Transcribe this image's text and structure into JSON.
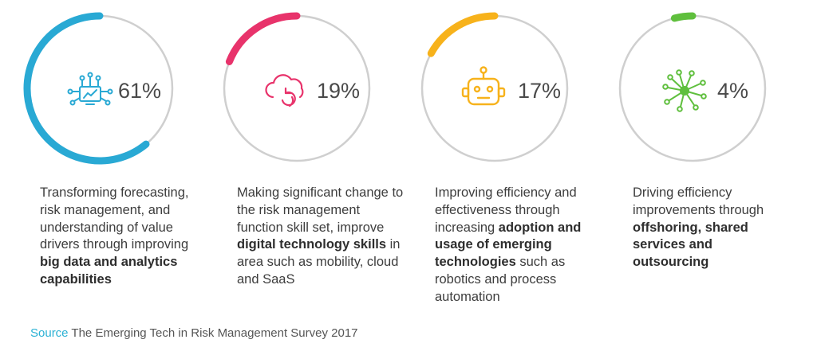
{
  "chart_data": {
    "type": "donut",
    "items": [
      {
        "value": 61,
        "value_label": "61%",
        "color": "#29a9d4",
        "icon": "analytics-network-icon",
        "text_parts": [
          "Transforming forecasting, risk management, and understanding of value drivers through improving ",
          "big data and analytics capabilities",
          ""
        ]
      },
      {
        "value": 19,
        "value_label": "19%",
        "color": "#e8336b",
        "icon": "cloud-sync-icon",
        "text_parts": [
          "Making significant change to the risk management function skill set, improve ",
          "digital technology skills",
          " in area such as mobility, cloud and SaaS"
        ]
      },
      {
        "value": 17,
        "value_label": "17%",
        "color": "#f7b21b",
        "icon": "robot-icon",
        "text_parts": [
          "Improving efficiency and effectiveness through increasing ",
          "adoption and usage of emerging technologies",
          " such as robotics and process automation"
        ]
      },
      {
        "value": 4,
        "value_label": "4%",
        "color": "#5fbf3d",
        "icon": "network-hub-icon",
        "text_parts": [
          "Driving efficiency improvements through ",
          "offshoring, shared services and outsourcing",
          ""
        ]
      }
    ],
    "track_color": "#cfcfcf"
  },
  "source": {
    "label": "Source",
    "text": " The Emerging Tech in Risk Management Survey 2017"
  }
}
